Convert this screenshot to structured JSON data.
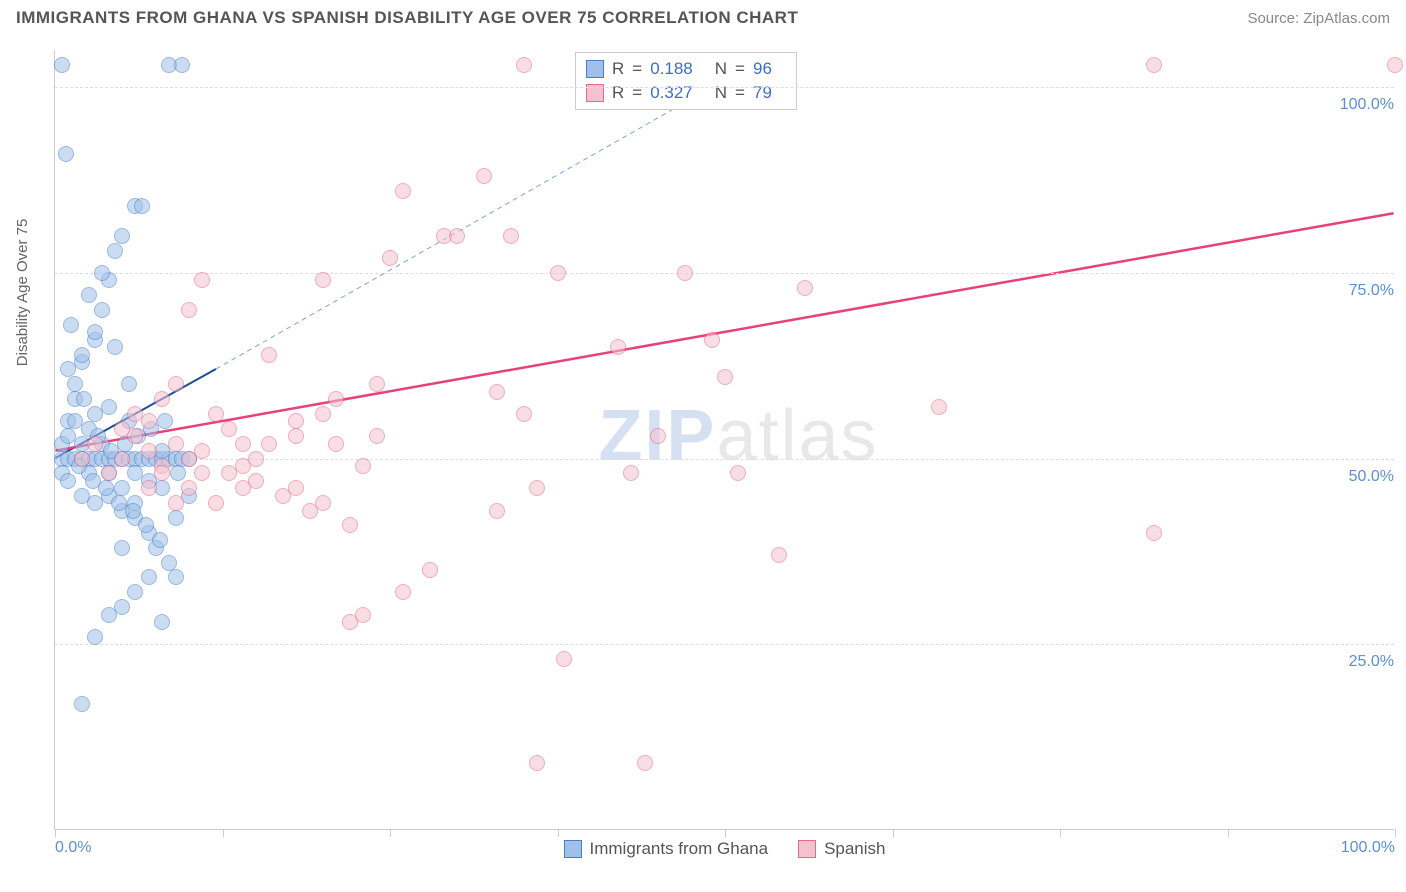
{
  "title": "IMMIGRANTS FROM GHANA VS SPANISH DISABILITY AGE OVER 75 CORRELATION CHART",
  "source": "Source: ZipAtlas.com",
  "ylabel": "Disability Age Over 75",
  "watermark": {
    "part1": "ZIP",
    "part2": "atlas"
  },
  "chart": {
    "type": "scatter",
    "xlim": [
      0,
      100
    ],
    "ylim": [
      0,
      105
    ],
    "grid_color": "#dddddd",
    "axis_color": "#cccccc",
    "background_color": "#ffffff",
    "ytick_positions": [
      25,
      50,
      75,
      100
    ],
    "ytick_labels": [
      "25.0%",
      "50.0%",
      "75.0%",
      "100.0%"
    ],
    "xtick_positions": [
      0,
      12.5,
      25,
      37.5,
      50,
      62.5,
      75,
      87.5,
      100
    ],
    "xtick_labels_shown": {
      "0": "0.0%",
      "100": "100.0%"
    },
    "marker_radius": 8,
    "marker_opacity": 0.55,
    "series": [
      {
        "id": "ghana",
        "label": "Immigrants from Ghana",
        "fill_color": "#9fc0e8",
        "stroke_color": "#4a7fc8",
        "r_value": "0.188",
        "n_value": "96",
        "regression": {
          "x1": 0,
          "y1": 50,
          "x2": 12,
          "y2": 62,
          "color": "#1b4f9c",
          "width": 2,
          "dash": "none"
        },
        "extrapolation": {
          "x1": 12,
          "y1": 62,
          "x2": 52,
          "y2": 103,
          "color": "#7da6d9",
          "width": 1,
          "dash": "5,4"
        },
        "points": [
          [
            0.5,
            50
          ],
          [
            0.5,
            52
          ],
          [
            0.5,
            48
          ],
          [
            1,
            50
          ],
          [
            1,
            53
          ],
          [
            1,
            55
          ],
          [
            1,
            47
          ],
          [
            1.5,
            50
          ],
          [
            1.5,
            58
          ],
          [
            1.5,
            60
          ],
          [
            2,
            50
          ],
          [
            2,
            52
          ],
          [
            2,
            45
          ],
          [
            2,
            63
          ],
          [
            2.5,
            50
          ],
          [
            2.5,
            48
          ],
          [
            2.5,
            54
          ],
          [
            3,
            50
          ],
          [
            3,
            56
          ],
          [
            3,
            44
          ],
          [
            3,
            66
          ],
          [
            3.5,
            50
          ],
          [
            3.5,
            52
          ],
          [
            3.5,
            70
          ],
          [
            4,
            50
          ],
          [
            4,
            48
          ],
          [
            4,
            45
          ],
          [
            4,
            74
          ],
          [
            4.5,
            50
          ],
          [
            4.5,
            78
          ],
          [
            5,
            50
          ],
          [
            5,
            46
          ],
          [
            5,
            43
          ],
          [
            5,
            80
          ],
          [
            5.5,
            50
          ],
          [
            5.5,
            55
          ],
          [
            6,
            50
          ],
          [
            6,
            48
          ],
          [
            6,
            42
          ],
          [
            6,
            84
          ],
          [
            6.5,
            50
          ],
          [
            6.5,
            84
          ],
          [
            7,
            50
          ],
          [
            7,
            40
          ],
          [
            7.5,
            50
          ],
          [
            7.5,
            38
          ],
          [
            8,
            50
          ],
          [
            8,
            46
          ],
          [
            8.5,
            50
          ],
          [
            8.5,
            36
          ],
          [
            9,
            50
          ],
          [
            9,
            34
          ],
          [
            9.5,
            50
          ],
          [
            10,
            50
          ],
          [
            10,
            45
          ],
          [
            0.8,
            91
          ],
          [
            2,
            17
          ],
          [
            3,
            26
          ],
          [
            4,
            29
          ],
          [
            5,
            30
          ],
          [
            6,
            32
          ],
          [
            7,
            34
          ],
          [
            8,
            28
          ],
          [
            1,
            62
          ],
          [
            2,
            64
          ],
          [
            3,
            67
          ],
          [
            4,
            57
          ],
          [
            5,
            38
          ],
          [
            6,
            44
          ],
          [
            7,
            47
          ],
          [
            8,
            51
          ],
          [
            9,
            42
          ],
          [
            1.5,
            55
          ],
          [
            2.2,
            58
          ],
          [
            3.2,
            53
          ],
          [
            4.2,
            51
          ],
          [
            5.2,
            52
          ],
          [
            6.2,
            53
          ],
          [
            7.2,
            54
          ],
          [
            8.2,
            55
          ],
          [
            9.2,
            48
          ],
          [
            1.8,
            49
          ],
          [
            2.8,
            47
          ],
          [
            3.8,
            46
          ],
          [
            4.8,
            44
          ],
          [
            5.8,
            43
          ],
          [
            6.8,
            41
          ],
          [
            7.8,
            39
          ],
          [
            8.5,
            103
          ],
          [
            9.5,
            103
          ],
          [
            0.5,
            103
          ],
          [
            1.2,
            68
          ],
          [
            2.5,
            72
          ],
          [
            3.5,
            75
          ],
          [
            4.5,
            65
          ],
          [
            5.5,
            60
          ]
        ]
      },
      {
        "id": "spanish",
        "label": "Spanish",
        "fill_color": "#f4c2cf",
        "stroke_color": "#e46a8a",
        "r_value": "0.327",
        "n_value": "79",
        "regression": {
          "x1": 0,
          "y1": 51,
          "x2": 100,
          "y2": 83,
          "color": "#e8407a",
          "width": 2.5,
          "dash": "none"
        },
        "points": [
          [
            2,
            50
          ],
          [
            3,
            52
          ],
          [
            4,
            48
          ],
          [
            5,
            50
          ],
          [
            6,
            53
          ],
          [
            7,
            51
          ],
          [
            8,
            49
          ],
          [
            9,
            52
          ],
          [
            10,
            50
          ],
          [
            11,
            48
          ],
          [
            12,
            56
          ],
          [
            13,
            54
          ],
          [
            14,
            52
          ],
          [
            15,
            47
          ],
          [
            16,
            64
          ],
          [
            17,
            45
          ],
          [
            18,
            55
          ],
          [
            19,
            43
          ],
          [
            20,
            74
          ],
          [
            21,
            58
          ],
          [
            22,
            41
          ],
          [
            23,
            29
          ],
          [
            24,
            60
          ],
          [
            25,
            77
          ],
          [
            26,
            86
          ],
          [
            9,
            60
          ],
          [
            10,
            70
          ],
          [
            11,
            74
          ],
          [
            29,
            80
          ],
          [
            32,
            88
          ],
          [
            33,
            43
          ],
          [
            34,
            80
          ],
          [
            35,
            103
          ],
          [
            35,
            56
          ],
          [
            36,
            46
          ],
          [
            36,
            9
          ],
          [
            37.5,
            75
          ],
          [
            38,
            23
          ],
          [
            42,
            65
          ],
          [
            43,
            48
          ],
          [
            44,
            9
          ],
          [
            45,
            53
          ],
          [
            47,
            75
          ],
          [
            49,
            66
          ],
          [
            50,
            61
          ],
          [
            51,
            48
          ],
          [
            54,
            37
          ],
          [
            56,
            73
          ],
          [
            66,
            57
          ],
          [
            82,
            40
          ],
          [
            82,
            103
          ],
          [
            100,
            103
          ],
          [
            7,
            55
          ],
          [
            8,
            58
          ],
          [
            14,
            49
          ],
          [
            16,
            52
          ],
          [
            18,
            46
          ],
          [
            20,
            44
          ],
          [
            22,
            28
          ],
          [
            5,
            54
          ],
          [
            6,
            56
          ],
          [
            7,
            46
          ],
          [
            8,
            48
          ],
          [
            9,
            44
          ],
          [
            10,
            46
          ],
          [
            11,
            51
          ],
          [
            12,
            44
          ],
          [
            13,
            48
          ],
          [
            14,
            46
          ],
          [
            15,
            50
          ],
          [
            18,
            53
          ],
          [
            20,
            56
          ],
          [
            21,
            52
          ],
          [
            23,
            49
          ],
          [
            24,
            53
          ],
          [
            26,
            32
          ],
          [
            28,
            35
          ],
          [
            30,
            80
          ],
          [
            33,
            59
          ]
        ]
      }
    ]
  },
  "legend_top": {
    "r_label": "R",
    "n_label": "N",
    "equals": "="
  }
}
